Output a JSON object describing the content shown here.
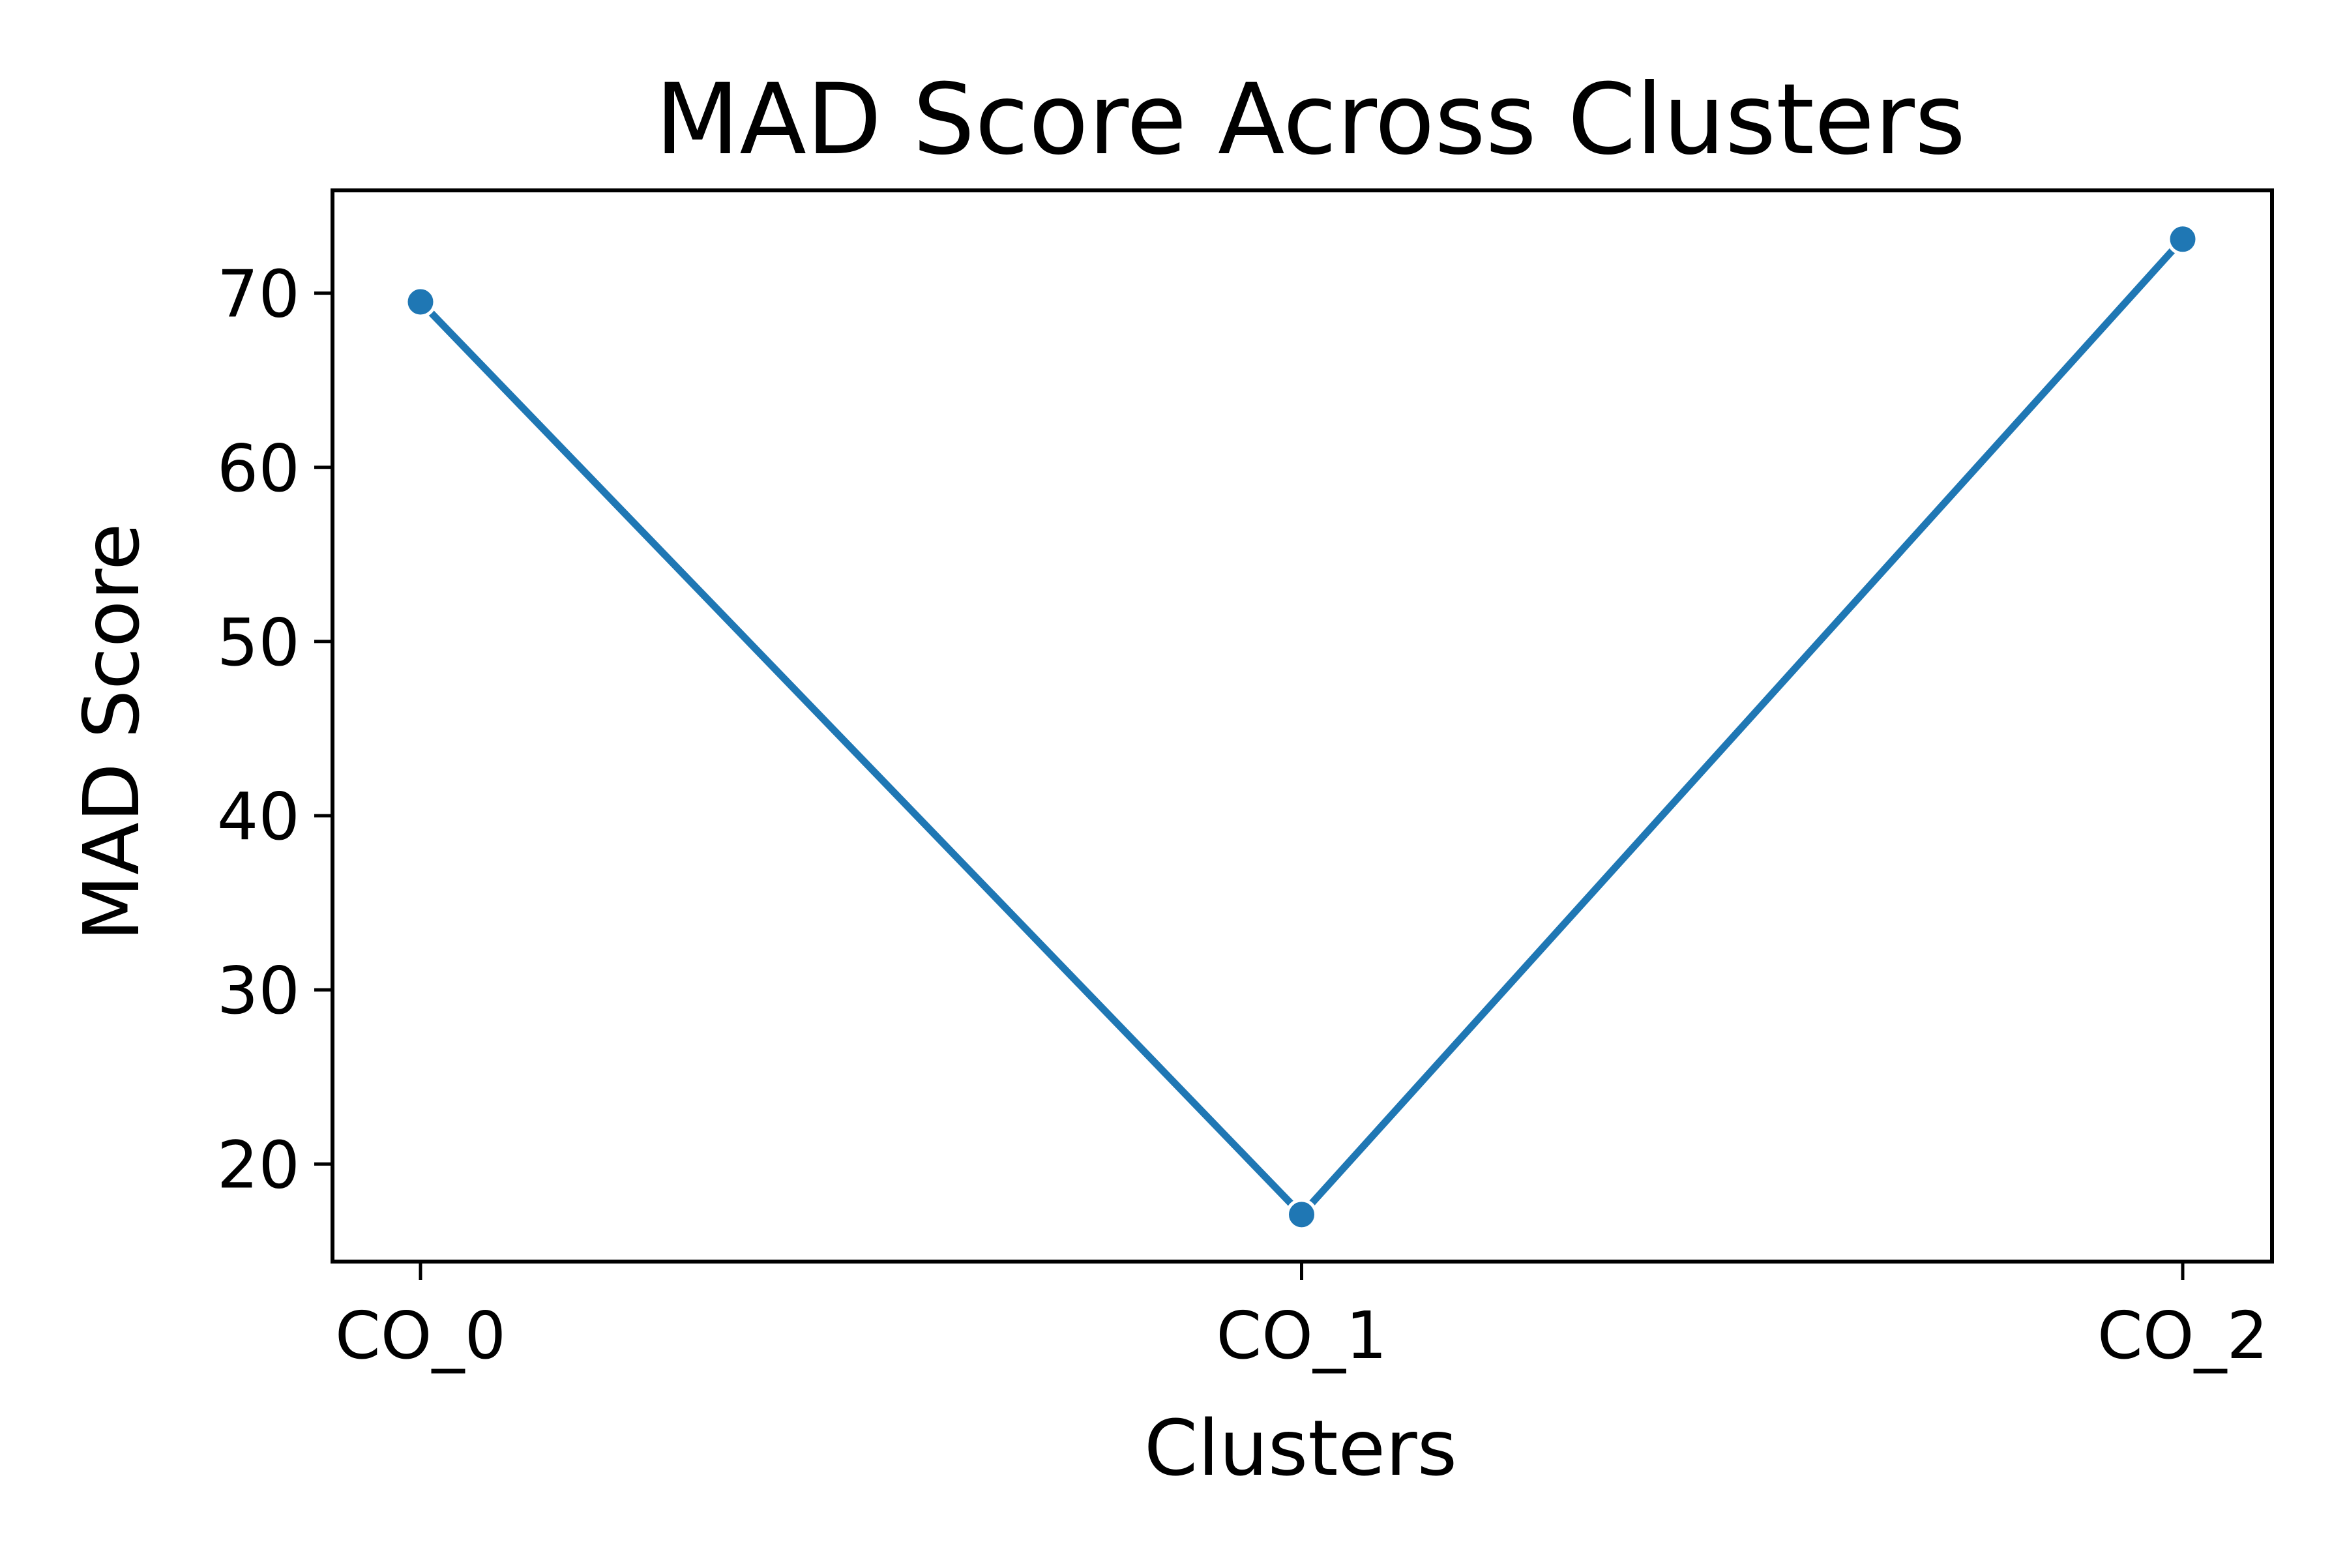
{
  "chart_data": {
    "type": "line",
    "title": "MAD Score Across Clusters",
    "xlabel": "Clusters",
    "ylabel": "MAD Score",
    "categories": [
      "CO_0",
      "CO_1",
      "CO_2"
    ],
    "series": [
      {
        "values": [
          69.5,
          17.1,
          73.1
        ],
        "color": "#1f77b4",
        "marker": "circle"
      }
    ],
    "ylim": [
      14.4,
      75.9
    ],
    "yticks": [
      20,
      30,
      40,
      50,
      60,
      70
    ],
    "grid": false,
    "legend": "none"
  }
}
